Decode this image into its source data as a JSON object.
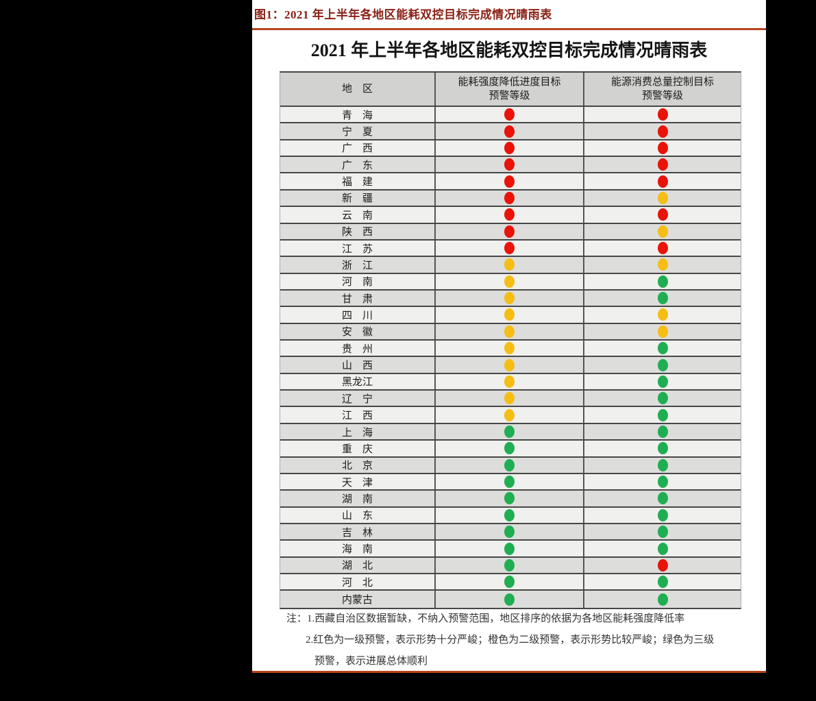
{
  "figure": {
    "caption": "图1：2021 年上半年各地区能耗双控目标完成情况晴雨表",
    "table_title": "2021 年上半年各地区能耗双控目标完成情况晴雨表"
  },
  "table": {
    "headers": {
      "region": "地　区",
      "intensity_line1": "能耗强度降低进度目标",
      "intensity_line2": "预警等级",
      "total_line1": "能源消费总量控制目标",
      "total_line2": "预警等级"
    },
    "legend_colors": {
      "red": "#e91309",
      "orange": "#f4be15",
      "green": "#1fae52"
    },
    "rows": [
      {
        "region": "青　海",
        "intensity": "red",
        "total": "red"
      },
      {
        "region": "宁　夏",
        "intensity": "red",
        "total": "red"
      },
      {
        "region": "广　西",
        "intensity": "red",
        "total": "red"
      },
      {
        "region": "广　东",
        "intensity": "red",
        "total": "red"
      },
      {
        "region": "福　建",
        "intensity": "red",
        "total": "red"
      },
      {
        "region": "新　疆",
        "intensity": "red",
        "total": "orange"
      },
      {
        "region": "云　南",
        "intensity": "red",
        "total": "red"
      },
      {
        "region": "陕　西",
        "intensity": "red",
        "total": "orange"
      },
      {
        "region": "江　苏",
        "intensity": "red",
        "total": "red"
      },
      {
        "region": "浙　江",
        "intensity": "orange",
        "total": "orange"
      },
      {
        "region": "河　南",
        "intensity": "orange",
        "total": "green"
      },
      {
        "region": "甘　肃",
        "intensity": "orange",
        "total": "green"
      },
      {
        "region": "四　川",
        "intensity": "orange",
        "total": "orange"
      },
      {
        "region": "安　徽",
        "intensity": "orange",
        "total": "orange"
      },
      {
        "region": "贵　州",
        "intensity": "orange",
        "total": "green"
      },
      {
        "region": "山　西",
        "intensity": "orange",
        "total": "green"
      },
      {
        "region": "黑龙江",
        "intensity": "orange",
        "total": "green"
      },
      {
        "region": "辽　宁",
        "intensity": "orange",
        "total": "green"
      },
      {
        "region": "江　西",
        "intensity": "orange",
        "total": "green"
      },
      {
        "region": "上　海",
        "intensity": "green",
        "total": "green"
      },
      {
        "region": "重　庆",
        "intensity": "green",
        "total": "green"
      },
      {
        "region": "北　京",
        "intensity": "green",
        "total": "green"
      },
      {
        "region": "天　津",
        "intensity": "green",
        "total": "green"
      },
      {
        "region": "湖　南",
        "intensity": "green",
        "total": "green"
      },
      {
        "region": "山　东",
        "intensity": "green",
        "total": "green"
      },
      {
        "region": "吉　林",
        "intensity": "green",
        "total": "green"
      },
      {
        "region": "海　南",
        "intensity": "green",
        "total": "green"
      },
      {
        "region": "湖　北",
        "intensity": "green",
        "total": "red"
      },
      {
        "region": "河　北",
        "intensity": "green",
        "total": "green"
      },
      {
        "region": "内蒙古",
        "intensity": "green",
        "total": "green"
      }
    ]
  },
  "notes": {
    "line1": "注：1.西藏自治区数据暂缺，不纳入预警范围，地区排序的依据为各地区能耗强度降低率",
    "line2": "2.红色为一级预警，表示形势十分严峻；橙色为二级预警，表示形势比较严峻；绿色为三级",
    "line3": "预警，表示进展总体顺利"
  }
}
